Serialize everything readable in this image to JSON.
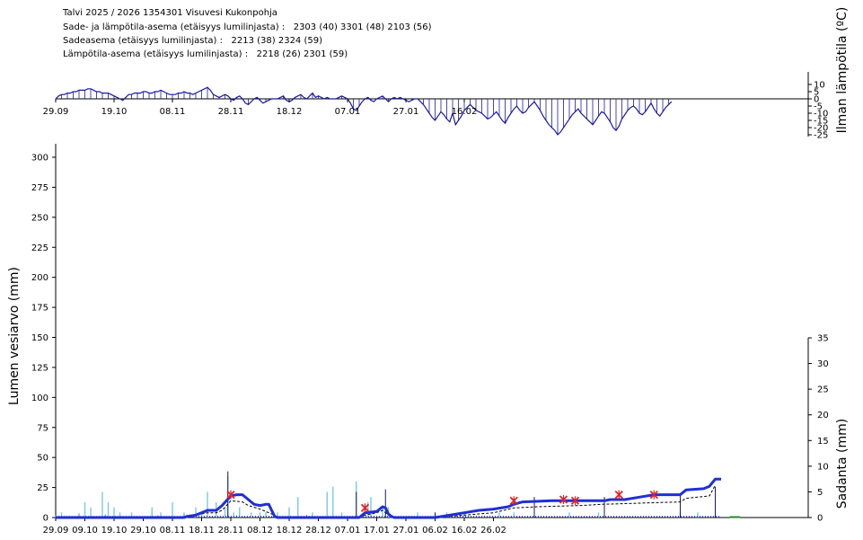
{
  "header": {
    "title": "Talvi 2025 / 2026 1354301 Visuvesi Kukonpohja",
    "line1": "Sade- ja lämpötila-asema (etäisyys lumilinjasta) :   2303 (40) 3301 (48) 2103 (56)",
    "line2": "Sadeasema (etäisyys lumilinjasta) :   2213 (38) 2324 (59)",
    "line3": "Lämpötila-asema (etäisyys lumilinjasta) :   2218 (26) 2301 (59)"
  },
  "chart_data": [
    {
      "type": "area",
      "panel": "temperature",
      "ylabel": "Ilman lämpötila (ºC)",
      "yticks": [
        10,
        5,
        0,
        -5,
        -10,
        -15,
        -20,
        -25
      ],
      "ylim": [
        -25,
        15
      ],
      "x_tick_labels": [
        "29.09",
        "19.10",
        "08.11",
        "28.11",
        "18.12",
        "07.01",
        "27.01",
        "16.02"
      ],
      "day0": "29.09",
      "series": [
        {
          "values": [
            0,
            2,
            3,
            3,
            4,
            4,
            5,
            5,
            6,
            6,
            6,
            7,
            7,
            6,
            5,
            5,
            4,
            4,
            4,
            3,
            2,
            1,
            0,
            -1,
            1,
            3,
            3,
            4,
            4,
            4,
            5,
            5,
            4,
            4,
            5,
            5,
            6,
            5,
            4,
            3,
            3,
            3,
            4,
            4,
            5,
            4,
            4,
            3,
            4,
            5,
            6,
            7,
            8,
            6,
            3,
            2,
            1,
            2,
            3,
            2,
            0,
            -1,
            1,
            2,
            0,
            -3,
            -4,
            -2,
            0,
            1,
            -1,
            -3,
            -2,
            -1,
            0,
            0,
            0,
            1,
            2,
            -1,
            -2,
            -1,
            1,
            2,
            3,
            1,
            0,
            2,
            4,
            1,
            2,
            1,
            0,
            1,
            0,
            0,
            0,
            1,
            2,
            1,
            0,
            -3,
            -7,
            -8,
            -5,
            -2,
            0,
            1,
            -1,
            -2,
            0,
            1,
            2,
            0,
            -2,
            0,
            1,
            0,
            1,
            0,
            -1,
            -2,
            -1,
            0,
            0,
            -2,
            -4,
            -7,
            -10,
            -13,
            -15,
            -12,
            -9,
            -11,
            -14,
            -16,
            -10,
            -18,
            -15,
            -12,
            -8,
            -6,
            -4,
            -6,
            -8,
            -9,
            -10,
            -12,
            -14,
            -13,
            -11,
            -9,
            -12,
            -15,
            -17,
            -13,
            -10,
            -7,
            -5,
            -8,
            -10,
            -9,
            -6,
            -4,
            -2,
            -5,
            -8,
            -12,
            -15,
            -18,
            -20,
            -22,
            -25,
            -23,
            -20,
            -17,
            -14,
            -11,
            -9,
            -7,
            -10,
            -12,
            -14,
            -16,
            -18,
            -15,
            -12,
            -9,
            -10,
            -13,
            -16,
            -20,
            -22,
            -19,
            -14,
            -11,
            -8,
            -6,
            -5,
            -7,
            -10,
            -11,
            -9,
            -6,
            -3,
            -7,
            -10,
            -12,
            -9,
            -6,
            -4,
            -2
          ]
        }
      ]
    },
    {
      "type": "line",
      "panel": "snow",
      "ylabel": "Lumen vesiarvo (mm)",
      "yticks": [
        0,
        25,
        50,
        75,
        100,
        125,
        150,
        175,
        200,
        225,
        250,
        275,
        300
      ],
      "ylim": [
        0,
        300
      ],
      "y2label": "Sadanta (mm)",
      "y2ticks": [
        0,
        5,
        10,
        15,
        20,
        25,
        30,
        35
      ],
      "y2lim": [
        0,
        35
      ],
      "x_tick_labels": [
        "29.09",
        "09.10",
        "19.10",
        "29.10",
        "08.11",
        "18.11",
        "28.11",
        "08.12",
        "18.12",
        "28.12",
        "07.01",
        "17.01",
        "27.01",
        "06.02",
        "16.02",
        "26.02"
      ],
      "day0": "29.09",
      "swe_model": [
        [
          0,
          0
        ],
        [
          44,
          0
        ],
        [
          45,
          1
        ],
        [
          48,
          2
        ],
        [
          50,
          4
        ],
        [
          52,
          6
        ],
        [
          55,
          6
        ],
        [
          57,
          10
        ],
        [
          60,
          18
        ],
        [
          62,
          19
        ],
        [
          64,
          19
        ],
        [
          66,
          15
        ],
        [
          68,
          11
        ],
        [
          70,
          10
        ],
        [
          72,
          11
        ],
        [
          73,
          11
        ],
        [
          74,
          6
        ],
        [
          75,
          1
        ],
        [
          76,
          0
        ],
        [
          104,
          0
        ],
        [
          106,
          4
        ],
        [
          110,
          5
        ],
        [
          112,
          9
        ],
        [
          113,
          8
        ],
        [
          114,
          3
        ],
        [
          115,
          1
        ],
        [
          116,
          0
        ],
        [
          130,
          0
        ],
        [
          135,
          2
        ],
        [
          140,
          4
        ],
        [
          145,
          6
        ],
        [
          150,
          7
        ],
        [
          155,
          9
        ],
        [
          157,
          11
        ],
        [
          160,
          13
        ],
        [
          170,
          14
        ],
        [
          180,
          14
        ],
        [
          188,
          14
        ],
        [
          190,
          15
        ],
        [
          195,
          15
        ],
        [
          200,
          17
        ],
        [
          205,
          19
        ],
        [
          210,
          19
        ],
        [
          214,
          19
        ],
        [
          216,
          23
        ],
        [
          222,
          24
        ],
        [
          224,
          26
        ],
        [
          226,
          32
        ],
        [
          228,
          32
        ]
      ],
      "swe_obs_line": [
        [
          44,
          0
        ],
        [
          46,
          1
        ],
        [
          48,
          2
        ],
        [
          52,
          4
        ],
        [
          55,
          4
        ],
        [
          57,
          6
        ],
        [
          60,
          14
        ],
        [
          64,
          13
        ],
        [
          66,
          10
        ],
        [
          70,
          7
        ],
        [
          74,
          3
        ],
        [
          76,
          0
        ],
        [
          104,
          0
        ],
        [
          106,
          2
        ],
        [
          110,
          4
        ],
        [
          112,
          6
        ],
        [
          114,
          2
        ],
        [
          116,
          0
        ],
        [
          130,
          0
        ],
        [
          140,
          2
        ],
        [
          150,
          4
        ],
        [
          157,
          8
        ],
        [
          165,
          9
        ],
        [
          180,
          10
        ],
        [
          187,
          11
        ],
        [
          200,
          12
        ],
        [
          214,
          13
        ],
        [
          216,
          16
        ],
        [
          224,
          18
        ],
        [
          226,
          27
        ]
      ],
      "swe_observations": [
        [
          60,
          19
        ],
        [
          106,
          8
        ],
        [
          157,
          14
        ],
        [
          174,
          15
        ],
        [
          178,
          14
        ],
        [
          193,
          19
        ],
        [
          205,
          19
        ]
      ],
      "precipitation": [
        [
          2,
          1
        ],
        [
          10,
          3
        ],
        [
          12,
          2
        ],
        [
          16,
          5
        ],
        [
          18,
          3
        ],
        [
          20,
          2
        ],
        [
          22,
          1
        ],
        [
          26,
          1
        ],
        [
          33,
          2
        ],
        [
          36,
          1
        ],
        [
          40,
          3
        ],
        [
          44,
          1
        ],
        [
          48,
          2
        ],
        [
          50,
          1
        ],
        [
          52,
          5
        ],
        [
          55,
          3
        ],
        [
          58,
          2
        ],
        [
          59,
          8
        ],
        [
          61,
          1
        ],
        [
          63,
          2
        ],
        [
          67,
          1
        ],
        [
          70,
          1
        ],
        [
          72,
          1
        ],
        [
          76,
          1
        ],
        [
          80,
          2
        ],
        [
          83,
          4
        ],
        [
          88,
          1
        ],
        [
          93,
          5
        ],
        [
          95,
          6
        ],
        [
          98,
          1
        ],
        [
          103,
          7
        ],
        [
          107,
          3
        ],
        [
          108,
          4
        ],
        [
          112,
          2
        ],
        [
          114,
          2
        ],
        [
          124,
          1
        ],
        [
          134,
          1
        ],
        [
          140,
          1
        ],
        [
          152,
          1
        ],
        [
          157,
          1
        ],
        [
          176,
          1
        ],
        [
          186,
          1
        ],
        [
          214,
          1
        ],
        [
          220,
          1
        ]
      ],
      "precipitation_total": [
        [
          0,
          0.4
        ],
        [
          8,
          0.8
        ],
        [
          17,
          0.6
        ],
        [
          26,
          0.3
        ],
        [
          35,
          0.4
        ],
        [
          44,
          0.6
        ],
        [
          53,
          0.2
        ],
        [
          62,
          0.4
        ],
        [
          75,
          0.3
        ],
        [
          86,
          0.5
        ],
        [
          98,
          0.3
        ],
        [
          108,
          0.4
        ],
        [
          121,
          0.3
        ]
      ],
      "colors": {
        "swe": "#1f2fd6",
        "precip": "#79c8ea",
        "obs": "#e0222a",
        "temp": "#1a1aa0"
      }
    }
  ]
}
